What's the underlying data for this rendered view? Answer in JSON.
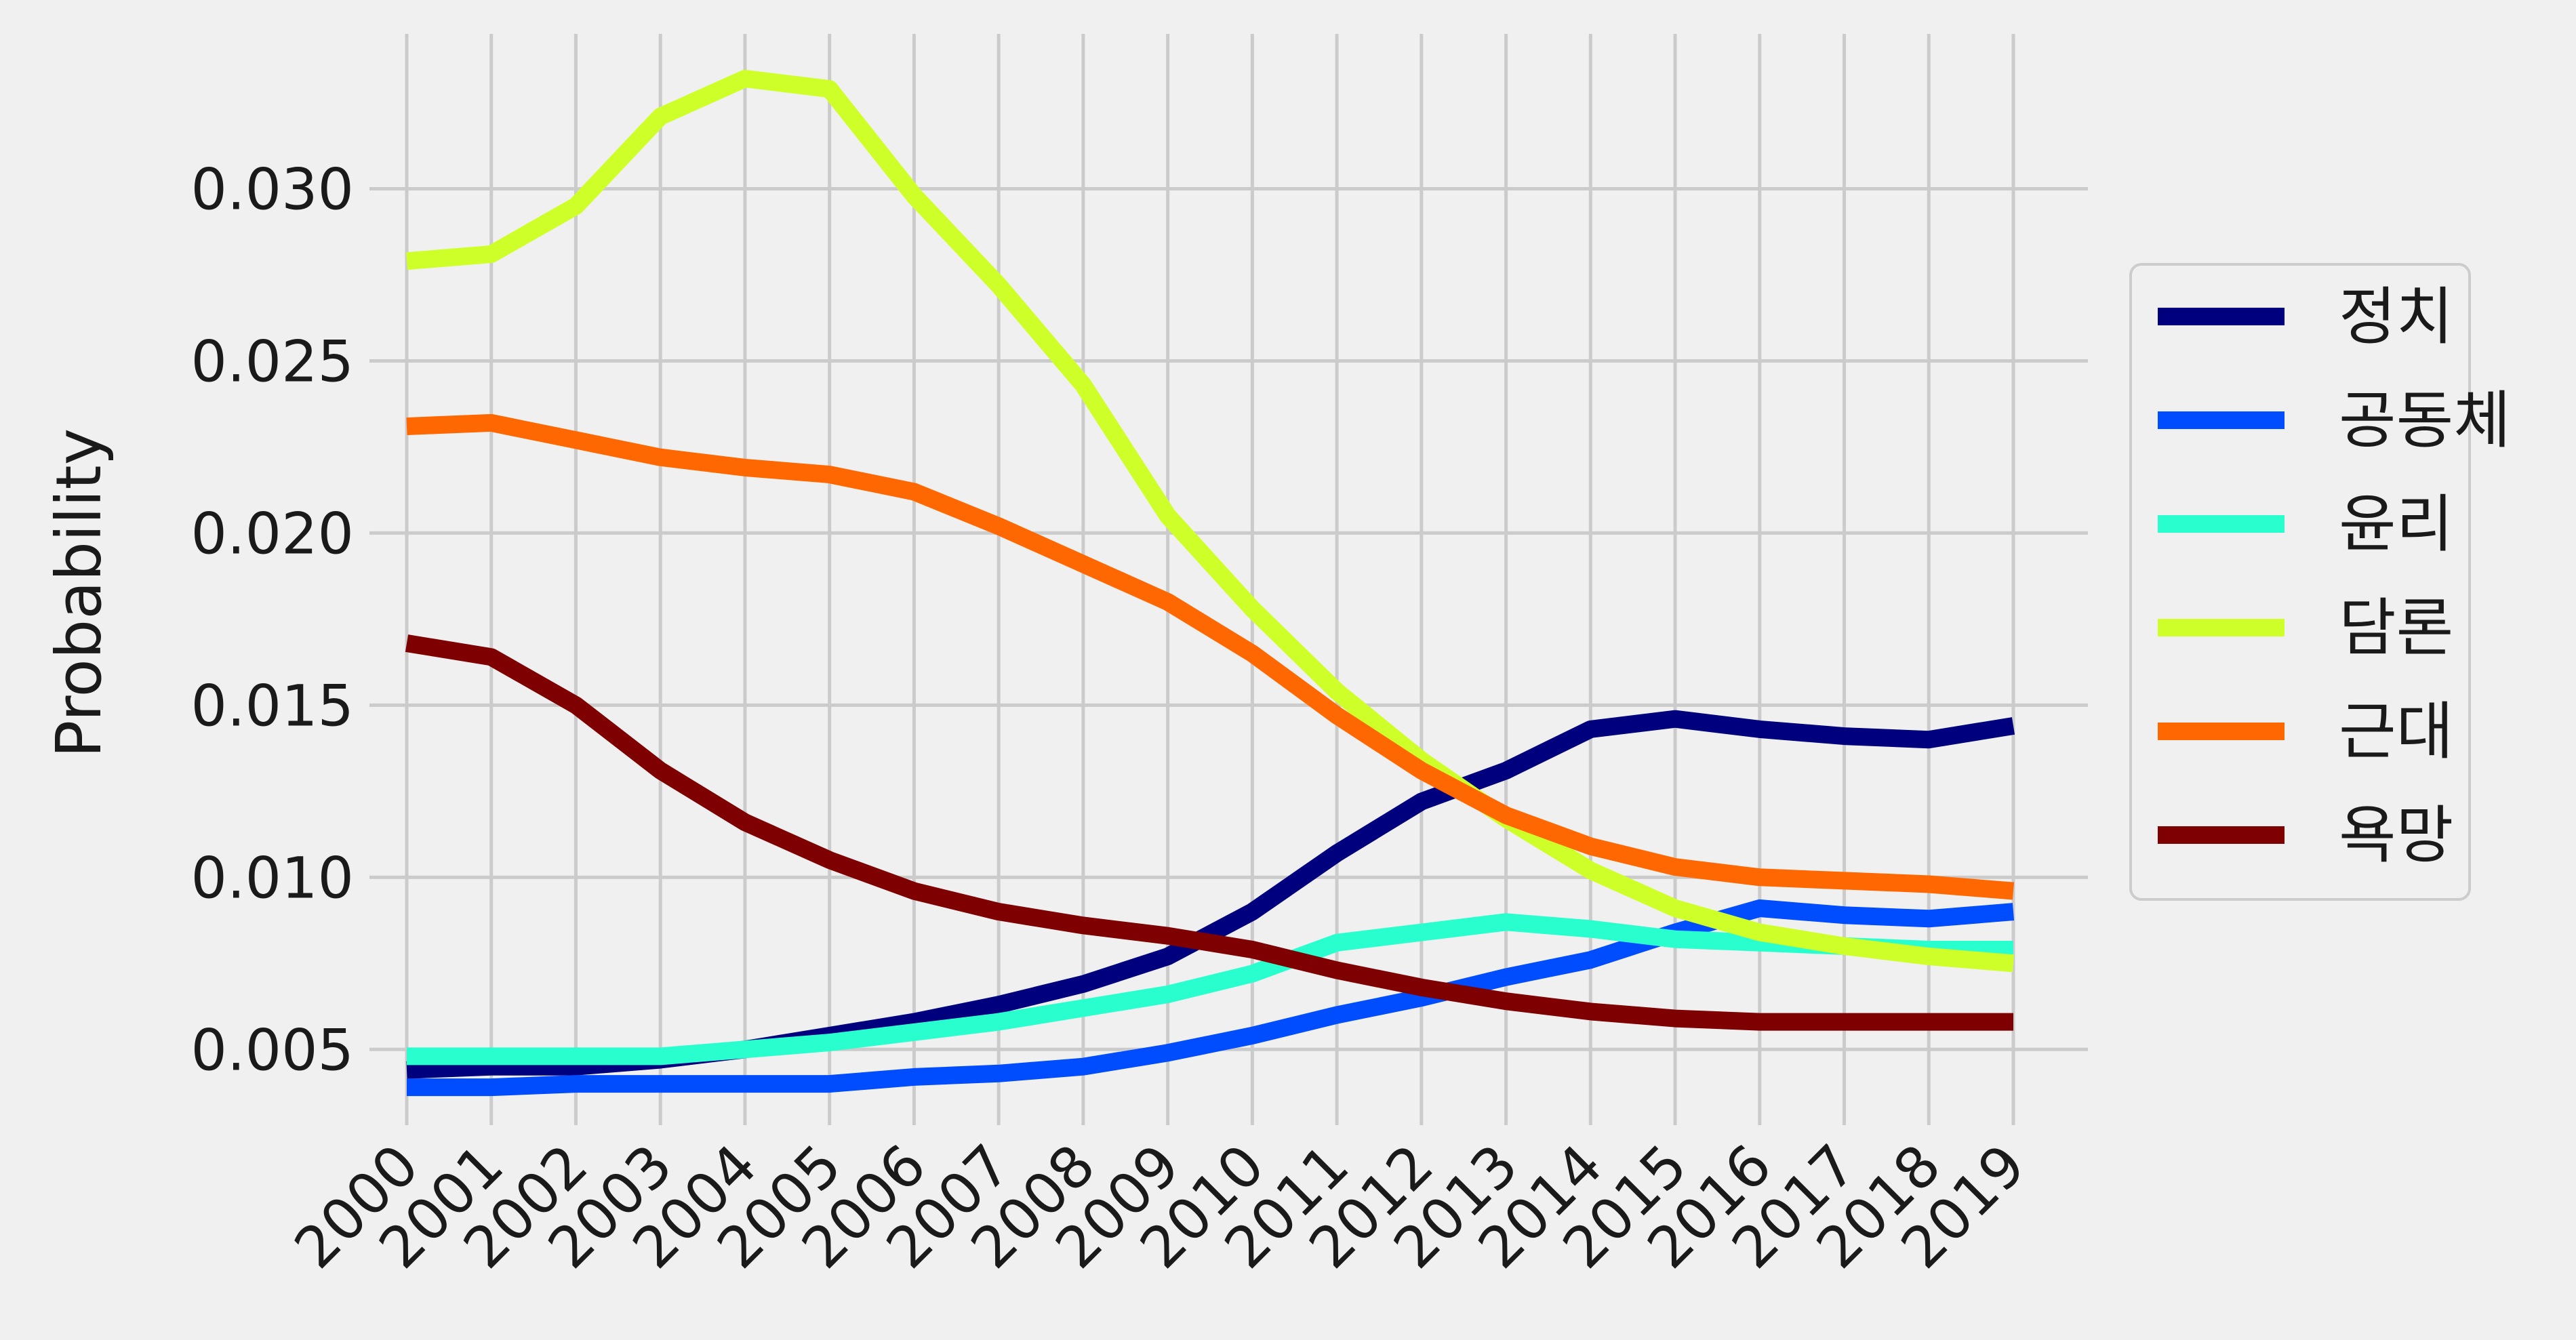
{
  "chart_data": {
    "type": "line",
    "title": "",
    "xlabel": "",
    "ylabel": "Probability",
    "x": [
      "2000",
      "2001",
      "2002",
      "2003",
      "2004",
      "2005",
      "2006",
      "2007",
      "2008",
      "2009",
      "2010",
      "2011",
      "2012",
      "2013",
      "2014",
      "2015",
      "2016",
      "2017",
      "2018",
      "2019"
    ],
    "ylim": [
      0.0028,
      0.0345
    ],
    "yticks": [
      "0.005",
      "0.010",
      "0.015",
      "0.020",
      "0.025",
      "0.030"
    ],
    "grid": true,
    "legend_position": "right",
    "series": [
      {
        "name": "정치",
        "color": "#00007f",
        "values": [
          0.0044,
          0.0045,
          0.0045,
          0.0047,
          0.005,
          0.0054,
          0.0058,
          0.0063,
          0.0069,
          0.0077,
          0.009,
          0.0107,
          0.0122,
          0.0131,
          0.0143,
          0.0146,
          0.0143,
          0.0141,
          0.014,
          0.0144
        ]
      },
      {
        "name": "공동체",
        "color": "#004cff",
        "values": [
          0.0039,
          0.0039,
          0.004,
          0.004,
          0.004,
          0.004,
          0.0042,
          0.0043,
          0.0045,
          0.0049,
          0.0054,
          0.006,
          0.0065,
          0.0071,
          0.0076,
          0.0084,
          0.0091,
          0.0089,
          0.0088,
          0.009
        ]
      },
      {
        "name": "윤리",
        "color": "#29ffce",
        "values": [
          0.0048,
          0.0048,
          0.0048,
          0.0048,
          0.005,
          0.0052,
          0.0055,
          0.0058,
          0.0062,
          0.0066,
          0.0072,
          0.0081,
          0.0084,
          0.0087,
          0.0085,
          0.0082,
          0.0081,
          0.008,
          0.0079,
          0.0079
        ]
      },
      {
        "name": "담론",
        "color": "#ceff29",
        "values": [
          0.0279,
          0.0281,
          0.0295,
          0.0321,
          0.0332,
          0.0329,
          0.0298,
          0.0272,
          0.0243,
          0.0205,
          0.0178,
          0.0154,
          0.0134,
          0.0117,
          0.0102,
          0.0091,
          0.0084,
          0.008,
          0.0077,
          0.0075
        ]
      },
      {
        "name": "근대",
        "color": "#ff6800",
        "values": [
          0.0231,
          0.0232,
          0.0227,
          0.0222,
          0.0219,
          0.0217,
          0.0212,
          0.0202,
          0.0191,
          0.018,
          0.0165,
          0.0147,
          0.0131,
          0.0118,
          0.0109,
          0.0103,
          0.01,
          0.0099,
          0.0098,
          0.0096
        ]
      },
      {
        "name": "욕망",
        "color": "#7f0000",
        "values": [
          0.0168,
          0.0164,
          0.015,
          0.0131,
          0.0116,
          0.0105,
          0.0096,
          0.009,
          0.0086,
          0.0083,
          0.0079,
          0.0073,
          0.0068,
          0.0064,
          0.0061,
          0.0059,
          0.0058,
          0.0058,
          0.0058,
          0.0058
        ]
      }
    ]
  }
}
